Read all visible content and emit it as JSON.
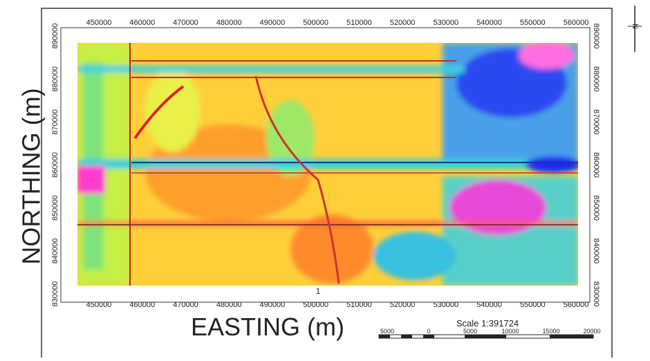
{
  "map": {
    "x_label": "EASTING (m)",
    "y_label": "NORTHING (m)",
    "x_ticks": [
      450000,
      460000,
      470000,
      480000,
      490000,
      500000,
      510000,
      520000,
      530000,
      540000,
      550000,
      560000
    ],
    "y_ticks": [
      890000,
      880000,
      870000,
      860000,
      850000,
      840000,
      830000
    ],
    "marker": "1",
    "scale": "Scale 1:391724",
    "scale_bar": [
      5000,
      0,
      5000,
      10000,
      15000,
      20000
    ],
    "north": "N"
  }
}
